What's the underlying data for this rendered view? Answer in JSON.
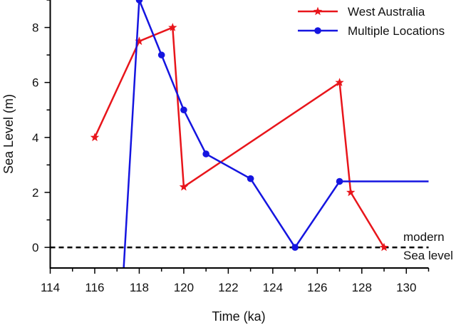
{
  "chart_data": {
    "type": "line",
    "xlabel": "Time (ka)",
    "ylabel": "Sea Level (m)",
    "xlim": [
      114,
      131
    ],
    "ylim": [
      -0.75,
      9
    ],
    "xticks": [
      114,
      116,
      118,
      120,
      122,
      124,
      126,
      128,
      130
    ],
    "yticks": [
      0,
      2,
      4,
      6,
      8
    ],
    "grid": false,
    "legend_position": "top-right",
    "reference_line": {
      "y": 0,
      "style": "dashed",
      "label_top": "modern",
      "label_bottom": "Sea level"
    },
    "series": [
      {
        "name": "West Australia",
        "color": "#e8151b",
        "marker": "star",
        "x": [
          116,
          118,
          119.5,
          120,
          127,
          127.5,
          129
        ],
        "y": [
          4,
          7.5,
          8,
          2.2,
          6,
          2,
          0
        ]
      },
      {
        "name": "Multiple Locations",
        "color": "#1515e0",
        "marker": "circle",
        "x": [
          117.3,
          118,
          119,
          120,
          121,
          123,
          125,
          127,
          131
        ],
        "y": [
          -0.75,
          9,
          7,
          5,
          3.4,
          2.5,
          0,
          2.4,
          2.4
        ],
        "markers_on": [
          false,
          true,
          true,
          true,
          true,
          true,
          true,
          true,
          false
        ]
      }
    ]
  }
}
